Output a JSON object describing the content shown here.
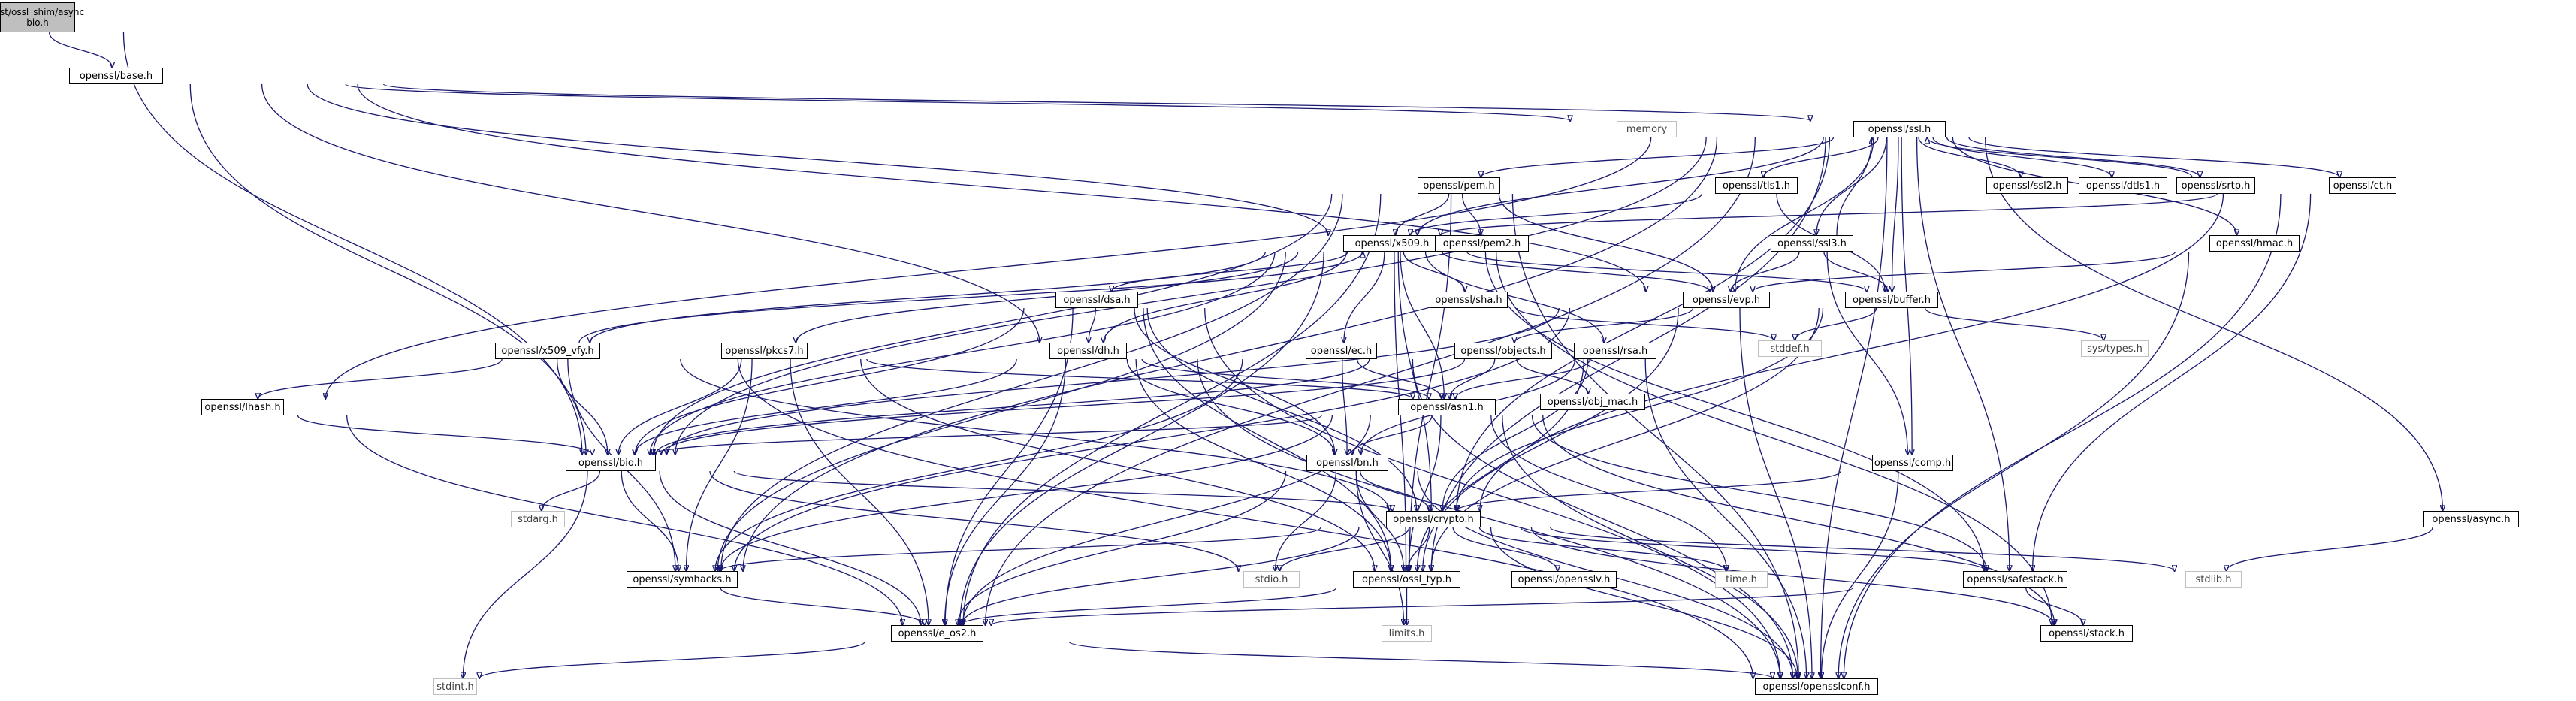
{
  "nodes": [
    {
      "id": "root",
      "label": "test/ossl_shim/async\nbio.h",
      "kind": "root"
    },
    {
      "id": "base",
      "label": "openssl/base.h"
    },
    {
      "id": "memory",
      "label": "memory",
      "kind": "sys"
    },
    {
      "id": "ssl",
      "label": "openssl/ssl.h"
    },
    {
      "id": "pem",
      "label": "openssl/pem.h"
    },
    {
      "id": "tls1",
      "label": "openssl/tls1.h"
    },
    {
      "id": "ssl2",
      "label": "openssl/ssl2.h"
    },
    {
      "id": "dtls1",
      "label": "openssl/dtls1.h"
    },
    {
      "id": "srtp",
      "label": "openssl/srtp.h"
    },
    {
      "id": "ct",
      "label": "openssl/ct.h"
    },
    {
      "id": "x509",
      "label": "openssl/x509.h"
    },
    {
      "id": "pem2",
      "label": "openssl/pem2.h"
    },
    {
      "id": "ssl3",
      "label": "openssl/ssl3.h"
    },
    {
      "id": "hmac",
      "label": "openssl/hmac.h"
    },
    {
      "id": "evp",
      "label": "openssl/evp.h"
    },
    {
      "id": "buffer",
      "label": "openssl/buffer.h"
    },
    {
      "id": "dsa",
      "label": "openssl/dsa.h"
    },
    {
      "id": "sha",
      "label": "openssl/sha.h"
    },
    {
      "id": "stddef",
      "label": "stddef.h",
      "kind": "sys"
    },
    {
      "id": "systypes",
      "label": "sys/types.h",
      "kind": "sys"
    },
    {
      "id": "x509vfy",
      "label": "openssl/x509_vfy.h"
    },
    {
      "id": "pkcs7",
      "label": "openssl/pkcs7.h"
    },
    {
      "id": "dh",
      "label": "openssl/dh.h"
    },
    {
      "id": "ec",
      "label": "openssl/ec.h"
    },
    {
      "id": "objects",
      "label": "openssl/objects.h"
    },
    {
      "id": "rsa",
      "label": "openssl/rsa.h"
    },
    {
      "id": "objmac",
      "label": "openssl/obj_mac.h"
    },
    {
      "id": "lhash",
      "label": "openssl/lhash.h"
    },
    {
      "id": "asn1",
      "label": "openssl/asn1.h"
    },
    {
      "id": "bio",
      "label": "openssl/bio.h"
    },
    {
      "id": "bn",
      "label": "openssl/bn.h"
    },
    {
      "id": "comp",
      "label": "openssl/comp.h"
    },
    {
      "id": "async",
      "label": "openssl/async.h"
    },
    {
      "id": "stdarg",
      "label": "stdarg.h",
      "kind": "sys"
    },
    {
      "id": "crypto",
      "label": "openssl/crypto.h"
    },
    {
      "id": "symhacks",
      "label": "openssl/symhacks.h"
    },
    {
      "id": "stdio",
      "label": "stdio.h",
      "kind": "sys"
    },
    {
      "id": "ossltyp",
      "label": "openssl/ossl_typ.h"
    },
    {
      "id": "opensslv",
      "label": "openssl/opensslv.h"
    },
    {
      "id": "time",
      "label": "time.h",
      "kind": "sys"
    },
    {
      "id": "safestack",
      "label": "openssl/safestack.h"
    },
    {
      "id": "stdlib",
      "label": "stdlib.h",
      "kind": "sys"
    },
    {
      "id": "limits",
      "label": "limits.h",
      "kind": "sys"
    },
    {
      "id": "eos2",
      "label": "openssl/e_os2.h"
    },
    {
      "id": "stack",
      "label": "openssl/stack.h"
    },
    {
      "id": "stdint",
      "label": "stdint.h",
      "kind": "sys"
    },
    {
      "id": "opensslconf",
      "label": "openssl/opensslconf.h"
    }
  ],
  "edges": [
    [
      "root",
      "base"
    ],
    [
      "root",
      "bio"
    ],
    [
      "base",
      "memory"
    ],
    [
      "base",
      "ssl"
    ],
    [
      "base",
      "x509"
    ],
    [
      "base",
      "evp"
    ],
    [
      "base",
      "dh"
    ],
    [
      "base",
      "bio"
    ],
    [
      "ssl",
      "pem"
    ],
    [
      "ssl",
      "tls1"
    ],
    [
      "ssl",
      "ssl2"
    ],
    [
      "ssl",
      "dtls1"
    ],
    [
      "ssl",
      "srtp"
    ],
    [
      "ssl",
      "ct"
    ],
    [
      "ssl",
      "ssl3"
    ],
    [
      "ssl",
      "hmac"
    ],
    [
      "ssl",
      "async"
    ],
    [
      "ssl",
      "x509"
    ],
    [
      "ssl",
      "evp"
    ],
    [
      "ssl",
      "buffer"
    ],
    [
      "ssl",
      "comp"
    ],
    [
      "ssl",
      "lhash"
    ],
    [
      "ssl",
      "crypto"
    ],
    [
      "ssl",
      "safestack"
    ],
    [
      "ssl",
      "ossltyp"
    ],
    [
      "ssl",
      "symhacks"
    ],
    [
      "ssl",
      "eos2"
    ],
    [
      "ssl",
      "opensslconf"
    ],
    [
      "ssl",
      "bio"
    ],
    [
      "pem",
      "x509"
    ],
    [
      "pem",
      "pem2"
    ],
    [
      "pem",
      "evp"
    ],
    [
      "pem",
      "bio"
    ],
    [
      "pem",
      "ossltyp"
    ],
    [
      "pem",
      "symhacks"
    ],
    [
      "pem",
      "eos2"
    ],
    [
      "pem",
      "opensslconf"
    ],
    [
      "tls1",
      "x509"
    ],
    [
      "tls1",
      "buffer"
    ],
    [
      "srtp",
      "ssl"
    ],
    [
      "ct",
      "x509"
    ],
    [
      "ct",
      "crypto"
    ],
    [
      "ct",
      "safestack"
    ],
    [
      "ct",
      "opensslconf"
    ],
    [
      "ssl3",
      "ssl"
    ],
    [
      "ssl3",
      "evp"
    ],
    [
      "ssl3",
      "buffer"
    ],
    [
      "ssl3",
      "comp"
    ],
    [
      "hmac",
      "evp"
    ],
    [
      "hmac",
      "opensslconf"
    ],
    [
      "x509",
      "dsa"
    ],
    [
      "x509",
      "sha"
    ],
    [
      "x509",
      "x509vfy"
    ],
    [
      "x509",
      "pkcs7"
    ],
    [
      "x509",
      "dh"
    ],
    [
      "x509",
      "ec"
    ],
    [
      "x509",
      "rsa"
    ],
    [
      "x509",
      "evp"
    ],
    [
      "x509",
      "buffer"
    ],
    [
      "x509",
      "asn1"
    ],
    [
      "x509",
      "bio"
    ],
    [
      "x509",
      "stack"
    ],
    [
      "x509",
      "safestack"
    ],
    [
      "x509",
      "crypto"
    ],
    [
      "x509",
      "ossltyp"
    ],
    [
      "x509",
      "symhacks"
    ],
    [
      "x509",
      "eos2"
    ],
    [
      "evp",
      "objects"
    ],
    [
      "evp",
      "bio"
    ],
    [
      "evp",
      "ossltyp"
    ],
    [
      "evp",
      "symhacks"
    ],
    [
      "evp",
      "opensslconf"
    ],
    [
      "buffer",
      "stddef"
    ],
    [
      "buffer",
      "systypes"
    ],
    [
      "buffer",
      "crypto"
    ],
    [
      "buffer",
      "ossltyp"
    ],
    [
      "dsa",
      "dh"
    ],
    [
      "dsa",
      "bn"
    ],
    [
      "dsa",
      "bio"
    ],
    [
      "dsa",
      "crypto"
    ],
    [
      "dsa",
      "ossltyp"
    ],
    [
      "dsa",
      "eos2"
    ],
    [
      "dsa",
      "opensslconf"
    ],
    [
      "sha",
      "stddef"
    ],
    [
      "x509vfy",
      "x509"
    ],
    [
      "x509vfy",
      "lhash"
    ],
    [
      "x509vfy",
      "bio"
    ],
    [
      "x509vfy",
      "crypto"
    ],
    [
      "x509vfy",
      "symhacks"
    ],
    [
      "x509vfy",
      "opensslconf"
    ],
    [
      "pkcs7",
      "asn1"
    ],
    [
      "pkcs7",
      "bio"
    ],
    [
      "pkcs7",
      "ossltyp"
    ],
    [
      "pkcs7",
      "symhacks"
    ],
    [
      "pkcs7",
      "eos2"
    ],
    [
      "dh",
      "asn1"
    ],
    [
      "dh",
      "bn"
    ],
    [
      "dh",
      "bio"
    ],
    [
      "dh",
      "ossltyp"
    ],
    [
      "dh",
      "eos2"
    ],
    [
      "dh",
      "opensslconf"
    ],
    [
      "ec",
      "asn1"
    ],
    [
      "ec",
      "bn"
    ],
    [
      "ec",
      "symhacks"
    ],
    [
      "ec",
      "opensslconf"
    ],
    [
      "objects",
      "objmac"
    ],
    [
      "objects",
      "asn1"
    ],
    [
      "objects",
      "bio"
    ],
    [
      "rsa",
      "asn1"
    ],
    [
      "rsa",
      "bn"
    ],
    [
      "rsa",
      "crypto"
    ],
    [
      "rsa",
      "ossltyp"
    ],
    [
      "rsa",
      "bio"
    ],
    [
      "rsa",
      "opensslconf"
    ],
    [
      "lhash",
      "bio"
    ],
    [
      "lhash",
      "eos2"
    ],
    [
      "asn1",
      "bio"
    ],
    [
      "asn1",
      "bn"
    ],
    [
      "asn1",
      "stack"
    ],
    [
      "asn1",
      "safestack"
    ],
    [
      "asn1",
      "ossltyp"
    ],
    [
      "asn1",
      "symhacks"
    ],
    [
      "asn1",
      "time"
    ],
    [
      "asn1",
      "eos2"
    ],
    [
      "asn1",
      "opensslconf"
    ],
    [
      "bio",
      "stdarg"
    ],
    [
      "bio",
      "stdint"
    ],
    [
      "bio",
      "crypto"
    ],
    [
      "bio",
      "stdio"
    ],
    [
      "bio",
      "symhacks"
    ],
    [
      "bio",
      "eos2"
    ],
    [
      "bn",
      "crypto"
    ],
    [
      "bn",
      "stdio"
    ],
    [
      "bn",
      "limits"
    ],
    [
      "bn",
      "ossltyp"
    ],
    [
      "bn",
      "eos2"
    ],
    [
      "bn",
      "opensslconf"
    ],
    [
      "comp",
      "crypto"
    ],
    [
      "comp",
      "opensslconf"
    ],
    [
      "async",
      "stdlib"
    ],
    [
      "crypto",
      "opensslv"
    ],
    [
      "crypto",
      "ossltyp"
    ],
    [
      "crypto",
      "stack"
    ],
    [
      "crypto",
      "safestack"
    ],
    [
      "crypto",
      "time"
    ],
    [
      "crypto",
      "stdlib"
    ],
    [
      "crypto",
      "stdio"
    ],
    [
      "crypto",
      "symhacks"
    ],
    [
      "crypto",
      "eos2"
    ],
    [
      "crypto",
      "opensslconf"
    ],
    [
      "symhacks",
      "eos2"
    ],
    [
      "ossltyp",
      "eos2"
    ],
    [
      "ossltyp",
      "limits"
    ],
    [
      "safestack",
      "stack"
    ],
    [
      "safestack",
      "eos2"
    ],
    [
      "eos2",
      "opensslconf"
    ],
    [
      "eos2",
      "stdint"
    ]
  ]
}
